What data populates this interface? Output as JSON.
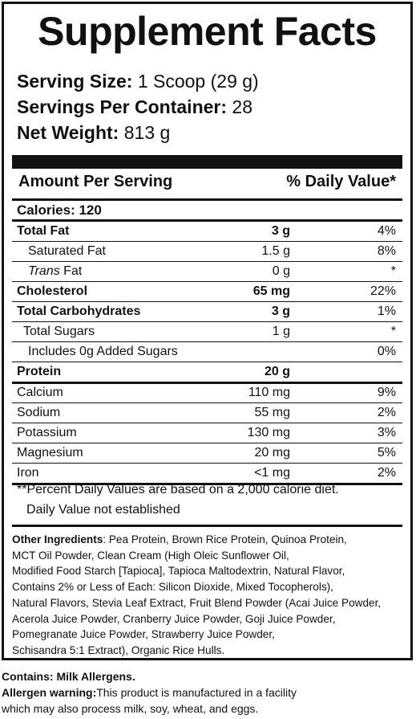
{
  "title": "Supplement Facts",
  "serving": {
    "size_label": "Serving Size:",
    "size_value": " 1 Scoop (29 g)",
    "per_container_label": "Servings Per Container:",
    "per_container_value": " 28",
    "net_weight_label": "Net Weight:",
    "net_weight_value": " 813 g"
  },
  "header": {
    "amount_label": "Amount Per Serving",
    "dv_label": "% Daily Value*"
  },
  "calories": "Calories: 120",
  "nutrients": [
    {
      "name": "Total Fat",
      "amount": "3 g",
      "dv": "4%"
    },
    {
      "name": "Saturated Fat",
      "amount": "1.5 g",
      "dv": "8%"
    },
    {
      "name_italic": "Trans",
      "name": " Fat",
      "amount": "0 g",
      "dv": "*"
    },
    {
      "name": "Cholesterol",
      "amount": "65 mg",
      "dv": "22%"
    },
    {
      "name": "Total Carbohydrates",
      "amount": "3 g",
      "dv": "1%"
    },
    {
      "name": "Total Sugars",
      "amount": "1 g",
      "dv": "*"
    },
    {
      "name": "Includes 0g Added Sugars",
      "amount": "",
      "dv": "0%"
    },
    {
      "name": "Protein",
      "amount": "20 g",
      "dv": ""
    },
    {
      "name": "Calcium",
      "amount": "110 mg",
      "dv": "9%"
    },
    {
      "name": "Sodium",
      "amount": "55 mg",
      "dv": "2%"
    },
    {
      "name": "Potassium",
      "amount": "130 mg",
      "dv": "3%"
    },
    {
      "name": "Magnesium",
      "amount": "20 mg",
      "dv": "5%"
    },
    {
      "name": "Iron",
      "amount": "<1 mg",
      "dv": "2%"
    }
  ],
  "footnotes": {
    "percent_note": "**Percent Daily Values are based on a 2,000 calorie diet.",
    "dv_note": "Daily Value not established"
  },
  "ingredients": {
    "label": "Other Ingredients",
    "lines": [
      ": Pea Protein, Brown Rice Protein, Quinoa Protein,",
      "MCT Oil Powder, Clean Cream (High Oleic Sunflower Oil,",
      "Modified Food Starch [Tapioca], Tapioca Maltodextrin, Natural Flavor,",
      "Contains 2% or Less of Each: Silicon Dioxide, Mixed Tocopherols),",
      "Natural Flavors, Stevia Leaf Extract, Fruit Blend Powder (Acai Juice Powder,",
      "Acerola Juice Powder, Cranberry Juice Powder, Goji Juice Powder,",
      "Pomegranate Juice Powder, Strawberry Juice Powder,",
      "Schisandra 5:1 Extract), Organic Rice Hulls."
    ]
  },
  "allergens": {
    "contains": "Contains: Milk Allergens.",
    "warning_label": "Allergen warning:",
    "warning_line1": "This product is manufactured in a facility",
    "warning_line2": "which may also process milk, soy, wheat, and eggs."
  }
}
